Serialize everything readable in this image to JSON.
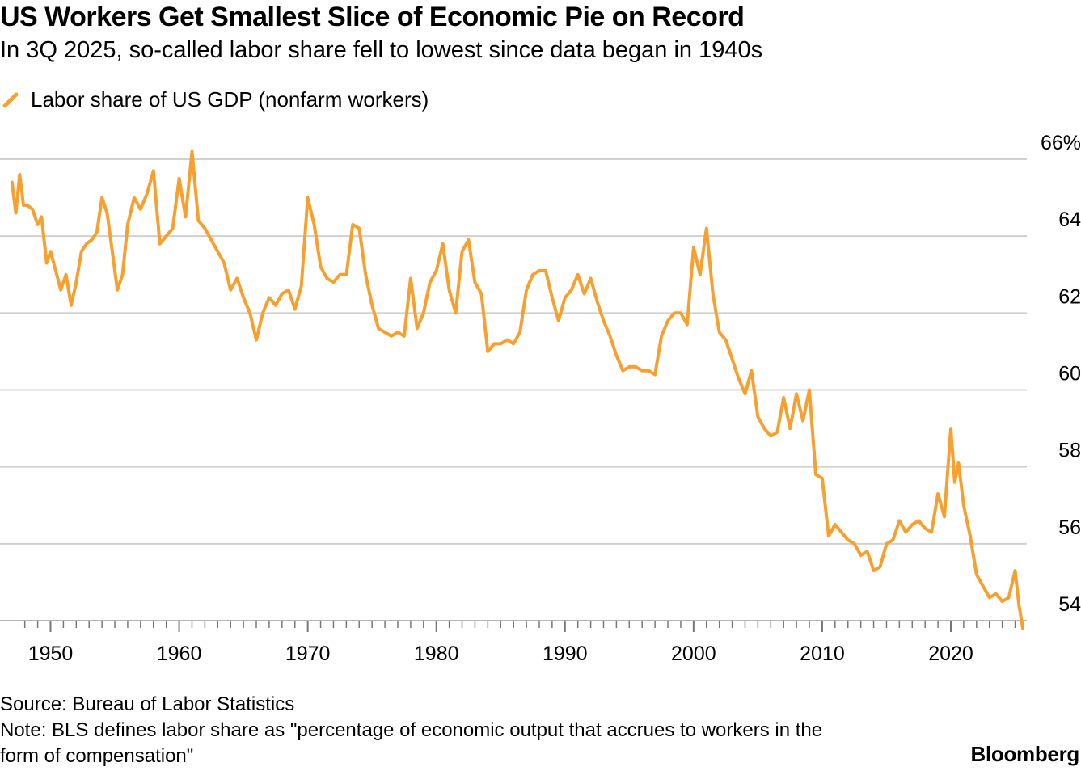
{
  "title": "US Workers Get Smallest Slice of Economic Pie on Record",
  "subtitle": "In 3Q 2025, so-called labor share fell to lowest since data began in 1940s",
  "legend": {
    "label": "Labor share of US GDP (nonfarm workers)",
    "color": "#f7a030"
  },
  "footer": {
    "source": "Source: Bureau of Labor Statistics",
    "note_line1": "Note: BLS defines labor share as \"percentage of economic output that accrues to workers in the",
    "note_line2": "form of compensation\""
  },
  "brand": "Bloomberg",
  "chart_data": {
    "type": "line",
    "title": "US Workers Get Smallest Slice of Economic Pie on Record",
    "subtitle": "In 3Q 2025, so-called labor share fell to lowest since data began in 1940s",
    "xlabel": "",
    "ylabel": "",
    "ylim": [
      53.8,
      66.4
    ],
    "xlim": [
      1947,
      2026
    ],
    "y_ticks": [
      {
        "value": 66,
        "label": "66%"
      },
      {
        "value": 64,
        "label": "64"
      },
      {
        "value": 62,
        "label": "62"
      },
      {
        "value": 60,
        "label": "60"
      },
      {
        "value": 58,
        "label": "58"
      },
      {
        "value": 56,
        "label": "56"
      },
      {
        "value": 54,
        "label": "54"
      }
    ],
    "x_ticks": [
      {
        "value": 1950,
        "label": "1950"
      },
      {
        "value": 1960,
        "label": "1960"
      },
      {
        "value": 1970,
        "label": "1970"
      },
      {
        "value": 1980,
        "label": "1980"
      },
      {
        "value": 1990,
        "label": "1990"
      },
      {
        "value": 2000,
        "label": "2000"
      },
      {
        "value": 2010,
        "label": "2010"
      },
      {
        "value": 2020,
        "label": "2020"
      }
    ],
    "grid": true,
    "legend_position": "top-left",
    "series": [
      {
        "name": "Labor share of US GDP (nonfarm workers)",
        "color": "#f7a030",
        "x": [
          1947.0,
          1947.3,
          1947.6,
          1947.9,
          1948.2,
          1948.6,
          1949.0,
          1949.3,
          1949.7,
          1950.0,
          1950.4,
          1950.8,
          1951.2,
          1951.6,
          1952.0,
          1952.4,
          1952.8,
          1953.2,
          1953.6,
          1954.0,
          1954.4,
          1954.8,
          1955.2,
          1955.6,
          1956.0,
          1956.5,
          1957.0,
          1957.5,
          1958.0,
          1958.5,
          1959.0,
          1959.5,
          1960.0,
          1960.5,
          1961.0,
          1961.5,
          1962.0,
          1962.5,
          1963.0,
          1963.5,
          1964.0,
          1964.5,
          1965.0,
          1965.5,
          1966.0,
          1966.5,
          1967.0,
          1967.5,
          1968.0,
          1968.5,
          1969.0,
          1969.5,
          1970.0,
          1970.5,
          1971.0,
          1971.5,
          1972.0,
          1972.5,
          1973.0,
          1973.5,
          1974.0,
          1974.5,
          1975.0,
          1975.5,
          1976.0,
          1976.5,
          1977.0,
          1977.5,
          1978.0,
          1978.5,
          1979.0,
          1979.5,
          1980.0,
          1980.5,
          1981.0,
          1981.5,
          1982.0,
          1982.5,
          1983.0,
          1983.5,
          1984.0,
          1984.5,
          1985.0,
          1985.5,
          1986.0,
          1986.5,
          1987.0,
          1987.5,
          1988.0,
          1988.5,
          1989.0,
          1989.5,
          1990.0,
          1990.5,
          1991.0,
          1991.5,
          1992.0,
          1992.5,
          1993.0,
          1993.5,
          1994.0,
          1994.5,
          1995.0,
          1995.5,
          1996.0,
          1996.5,
          1997.0,
          1997.5,
          1998.0,
          1998.5,
          1999.0,
          1999.5,
          2000.0,
          2000.5,
          2001.0,
          2001.5,
          2002.0,
          2002.5,
          2003.0,
          2003.5,
          2004.0,
          2004.5,
          2005.0,
          2005.5,
          2006.0,
          2006.5,
          2007.0,
          2007.5,
          2008.0,
          2008.5,
          2009.0,
          2009.5,
          2010.0,
          2010.5,
          2011.0,
          2011.5,
          2012.0,
          2012.5,
          2013.0,
          2013.5,
          2014.0,
          2014.5,
          2015.0,
          2015.5,
          2016.0,
          2016.5,
          2017.0,
          2017.5,
          2018.0,
          2018.5,
          2019.0,
          2019.5,
          2020.0,
          2020.3,
          2020.6,
          2021.0,
          2021.5,
          2022.0,
          2022.5,
          2023.0,
          2023.5,
          2024.0,
          2024.5,
          2025.0,
          2025.3,
          2025.6
        ],
        "values": [
          65.4,
          64.6,
          65.6,
          64.8,
          64.8,
          64.7,
          64.3,
          64.5,
          63.3,
          63.6,
          63.1,
          62.6,
          63.0,
          62.2,
          62.8,
          63.6,
          63.8,
          63.9,
          64.1,
          65.0,
          64.6,
          63.6,
          62.6,
          63.0,
          64.3,
          65.0,
          64.7,
          65.1,
          65.7,
          63.8,
          64.0,
          64.2,
          65.5,
          64.5,
          66.2,
          64.4,
          64.2,
          63.9,
          63.6,
          63.3,
          62.6,
          62.9,
          62.4,
          62.0,
          61.3,
          62.0,
          62.4,
          62.2,
          62.5,
          62.6,
          62.1,
          62.7,
          65.0,
          64.3,
          63.2,
          62.9,
          62.8,
          63.0,
          63.0,
          64.3,
          64.2,
          63.0,
          62.2,
          61.6,
          61.5,
          61.4,
          61.5,
          61.4,
          62.9,
          61.6,
          62.0,
          62.8,
          63.1,
          63.8,
          62.6,
          62.0,
          63.6,
          63.9,
          62.8,
          62.5,
          61.0,
          61.2,
          61.2,
          61.3,
          61.2,
          61.5,
          62.6,
          63.0,
          63.1,
          63.1,
          62.4,
          61.8,
          62.4,
          62.6,
          63.0,
          62.5,
          62.9,
          62.3,
          61.8,
          61.4,
          60.9,
          60.5,
          60.6,
          60.6,
          60.5,
          60.5,
          60.4,
          61.4,
          61.8,
          62.0,
          62.0,
          61.7,
          63.7,
          63.0,
          64.2,
          62.5,
          61.5,
          61.3,
          60.8,
          60.3,
          59.9,
          60.5,
          59.3,
          59.0,
          58.8,
          58.9,
          59.8,
          59.0,
          59.9,
          59.2,
          60.0,
          57.8,
          57.7,
          56.2,
          56.5,
          56.3,
          56.1,
          56.0,
          55.7,
          55.8,
          55.3,
          55.4,
          56.0,
          56.1,
          56.6,
          56.3,
          56.5,
          56.6,
          56.4,
          56.3,
          57.3,
          56.7,
          59.0,
          57.6,
          58.1,
          57.0,
          56.2,
          55.2,
          54.9,
          54.6,
          54.7,
          54.5,
          54.6,
          55.3,
          54.4,
          53.8
        ]
      }
    ]
  }
}
